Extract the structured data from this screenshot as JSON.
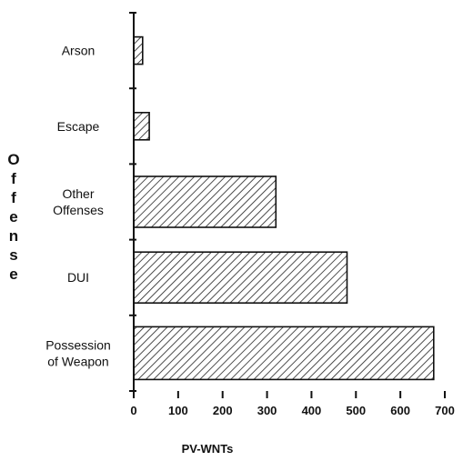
{
  "chart_data": {
    "type": "bar",
    "orientation": "horizontal",
    "categories": [
      [
        "Arson"
      ],
      [
        "Escape"
      ],
      [
        "Other",
        "Offenses"
      ],
      [
        "DUI"
      ],
      [
        "Possession",
        "of Weapon"
      ]
    ],
    "values": [
      20,
      35,
      320,
      480,
      675
    ],
    "xlabel": "PV-WNTs",
    "ylabel": "Offense",
    "xlim": [
      0,
      700
    ],
    "xticks": [
      0,
      100,
      200,
      300,
      400,
      500,
      600,
      700
    ],
    "bar_fill": "hatched",
    "grid": false,
    "legend": "none"
  }
}
